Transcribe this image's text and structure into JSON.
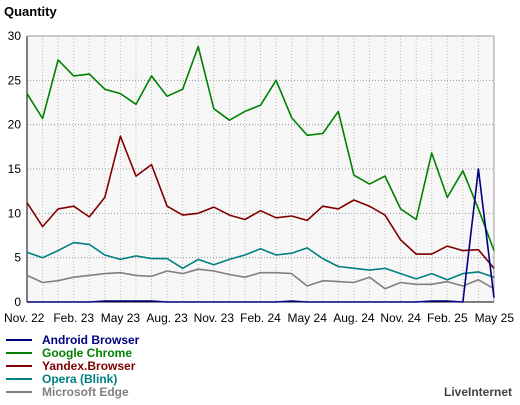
{
  "chart_data": {
    "type": "line",
    "ylabel": "Quantity",
    "ylim": [
      0,
      30
    ],
    "yticks": [
      0,
      5,
      10,
      15,
      20,
      25,
      30
    ],
    "xtick_labels": [
      "Nov. 22",
      "Feb. 23",
      "May 23",
      "Aug. 23",
      "Nov. 23",
      "Feb. 24",
      "May 24",
      "Aug. 24",
      "Nov. 24",
      "Feb. 25",
      "May 25"
    ],
    "grid": true,
    "legend_placement": "bottom-left",
    "credit": "LiveInternet",
    "x_points": 31,
    "series": [
      {
        "name": "Android Browser",
        "color": "#000080",
        "values": [
          0,
          0,
          0,
          0,
          0,
          0.1,
          0.1,
          0.1,
          0.1,
          0,
          0,
          0,
          0,
          0,
          0,
          0,
          0,
          0.1,
          0,
          0,
          0,
          0,
          0,
          0,
          0,
          0,
          0.1,
          0.1,
          0,
          15,
          0.5
        ]
      },
      {
        "name": "Google Chrome",
        "color": "#008000",
        "values": [
          23.5,
          20.7,
          27.3,
          25.5,
          25.7,
          24,
          23.5,
          22.3,
          25.5,
          23.2,
          24,
          28.8,
          21.8,
          20.5,
          21.5,
          22.2,
          25,
          20.8,
          18.8,
          19,
          21.5,
          14.3,
          13.3,
          14.2,
          10.5,
          9.3,
          16.8,
          11.8,
          14.8,
          10.5,
          5.8
        ]
      },
      {
        "name": "Yandex.Browser",
        "color": "#800000",
        "values": [
          11.2,
          8.5,
          10.5,
          10.8,
          9.6,
          11.8,
          18.7,
          14.2,
          15.5,
          10.8,
          9.8,
          10,
          10.7,
          9.8,
          9.3,
          10.3,
          9.5,
          9.7,
          9.2,
          10.8,
          10.5,
          11.5,
          10.8,
          9.8,
          7,
          5.4,
          5.4,
          6.3,
          5.8,
          5.9,
          3.8
        ]
      },
      {
        "name": "Opera (Blink)",
        "color": "#008080",
        "values": [
          5.6,
          5,
          5.8,
          6.7,
          6.5,
          5.3,
          4.8,
          5.2,
          4.9,
          4.9,
          3.8,
          4.8,
          4.2,
          4.8,
          5.3,
          6,
          5.3,
          5.5,
          6.1,
          4.9,
          4,
          3.8,
          3.6,
          3.8,
          3.2,
          2.6,
          3.2,
          2.5,
          3.2,
          3.4,
          2.8
        ]
      },
      {
        "name": "Microsoft Edge",
        "color": "#808080",
        "values": [
          3,
          2.2,
          2.4,
          2.8,
          3,
          3.2,
          3.3,
          3,
          2.9,
          3.5,
          3.2,
          3.7,
          3.5,
          3.1,
          2.8,
          3.3,
          3.3,
          3.2,
          1.8,
          2.4,
          2.3,
          2.2,
          2.8,
          1.5,
          2.2,
          2,
          2,
          2.3,
          1.8,
          2.5,
          1.5
        ]
      }
    ]
  }
}
